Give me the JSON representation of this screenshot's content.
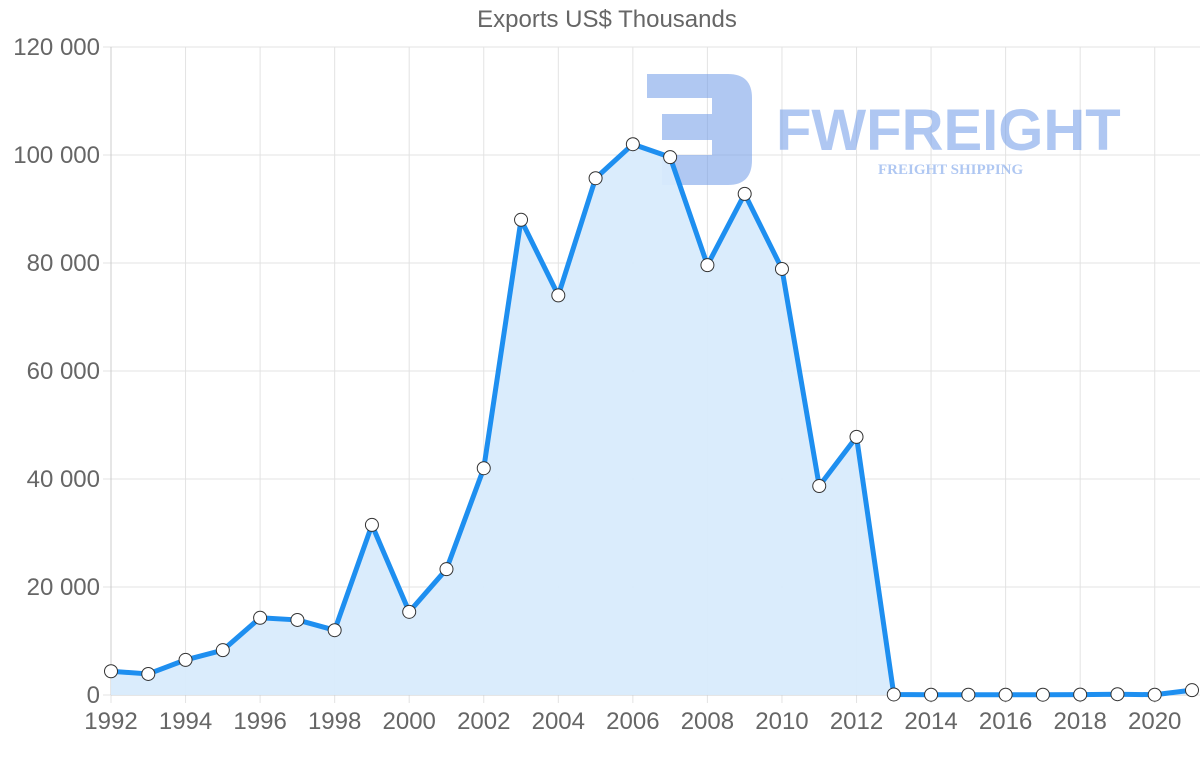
{
  "chart": {
    "title": "Exports US$ Thousands"
  },
  "watermark": {
    "brand": "FWFREIGHT",
    "tagline": "FREIGHT SHIPPING",
    "color": "#6f9be8"
  },
  "colors": {
    "line": "#1e8ff0",
    "fill": "#d8ebfc",
    "grid": "#e3e3e3",
    "axis_text": "#666666",
    "point_fill": "#ffffff",
    "point_stroke": "#333333"
  },
  "chart_data": {
    "type": "area",
    "title": "Exports US$ Thousands",
    "xlabel": "",
    "ylabel": "",
    "ylim": [
      0,
      120000
    ],
    "yticks": [
      0,
      20000,
      40000,
      60000,
      80000,
      100000,
      120000
    ],
    "ytick_labels": [
      "0",
      "20 000",
      "40 000",
      "60 000",
      "80 000",
      "100 000",
      "120 000"
    ],
    "xtick_labels": [
      "1992",
      "1994",
      "1996",
      "1998",
      "2000",
      "2002",
      "2004",
      "2006",
      "2008",
      "2010",
      "2012",
      "2014",
      "2016",
      "2018",
      "2020"
    ],
    "grid": true,
    "legend": "none",
    "x": [
      1992,
      1993,
      1994,
      1995,
      1996,
      1997,
      1998,
      1999,
      2000,
      2001,
      2002,
      2003,
      2004,
      2005,
      2006,
      2007,
      2008,
      2009,
      2010,
      2011,
      2012,
      2013,
      2014,
      2015,
      2016,
      2017,
      2018,
      2019,
      2020,
      2021
    ],
    "series": [
      {
        "name": "Exports US$ Thousands",
        "values": [
          4400,
          3900,
          6500,
          8300,
          14300,
          13900,
          12000,
          31500,
          15400,
          23300,
          42000,
          88000,
          74000,
          95700,
          102000,
          99600,
          79600,
          92800,
          78900,
          38700,
          47800,
          100,
          50,
          50,
          50,
          50,
          80,
          150,
          50,
          900
        ]
      }
    ]
  }
}
